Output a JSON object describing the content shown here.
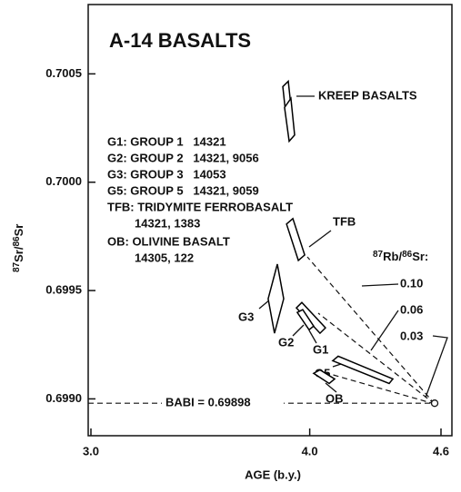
{
  "chart_data": {
    "type": "polygon",
    "title": "A-14 BASALTS",
    "xlabel": "AGE (b.y.)",
    "ylabel_parts": [
      "87",
      "Sr/",
      "86",
      "Sr"
    ],
    "xlim": [
      3.0,
      4.6
    ],
    "ylim": [
      0.69883,
      0.70082
    ],
    "xticks": [
      {
        "value": 3.0,
        "label": "3.0"
      },
      {
        "value": 4.0,
        "label": "4.0"
      },
      {
        "value": 4.6,
        "label": "4.6"
      }
    ],
    "yticks": [
      {
        "value": 0.699,
        "label": "0.6990"
      },
      0.6995,
      {
        "value": 0.7,
        "label": "0.7000"
      },
      0.7005
    ],
    "color": "#000000",
    "legend": [
      "G1: GROUP 1   14321",
      "G2: GROUP 2   14321, 9056",
      "G3: GROUP 3   14053",
      "G5: GROUP 5   14321, 9059",
      "TFB: TRIDYMITE FERROBASALT",
      "14321, 1383",
      "OB: OLIVINE BASALT",
      "14305, 122"
    ],
    "ratio_label_parts": [
      "87",
      "Rb/",
      "86",
      "Sr:"
    ],
    "ratio_labels": [
      "0.10",
      "0.06",
      "0.03"
    ],
    "babi": {
      "label": "BABI = 0.69898",
      "value": 0.69898,
      "x": 4.571
    },
    "series": [
      {
        "name": "KREEP BASALTS",
        "x": [
          3.877,
          3.902,
          3.914,
          3.889
        ],
        "y": [
          0.700441,
          0.700466,
          0.700353,
          0.700328
        ]
      },
      {
        "name": null,
        "x": [
          3.885,
          3.914,
          3.931,
          3.906
        ],
        "y": [
          0.700345,
          0.700387,
          0.700218,
          0.700189
        ]
      },
      {
        "name": "TFB",
        "x": [
          3.894,
          3.923,
          3.977,
          3.948
        ],
        "y": [
          0.699807,
          0.699832,
          0.699664,
          0.699639
        ]
      },
      {
        "name": "G3",
        "x": [
          3.81,
          3.852,
          3.881,
          3.839
        ],
        "y": [
          0.699462,
          0.699622,
          0.699462,
          0.699303
        ]
      },
      {
        "name": "G2",
        "x": [
          3.939,
          3.964,
          4.072,
          4.047
        ],
        "y": [
          0.69942,
          0.699445,
          0.699328,
          0.699303
        ]
      },
      {
        "name": "G1",
        "x": [
          3.943,
          3.968,
          4.018,
          3.997
        ],
        "y": [
          0.699399,
          0.699412,
          0.699336,
          0.699319
        ]
      },
      {
        "name": "G5",
        "x": [
          4.105,
          4.13,
          4.38,
          4.363
        ],
        "y": [
          0.699176,
          0.699197,
          0.699092,
          0.699071
        ]
      },
      {
        "name": "OB",
        "x": [
          4.018,
          4.047,
          4.114,
          4.089
        ],
        "y": [
          0.699118,
          0.699134,
          0.699092,
          0.699071
        ]
      }
    ]
  }
}
